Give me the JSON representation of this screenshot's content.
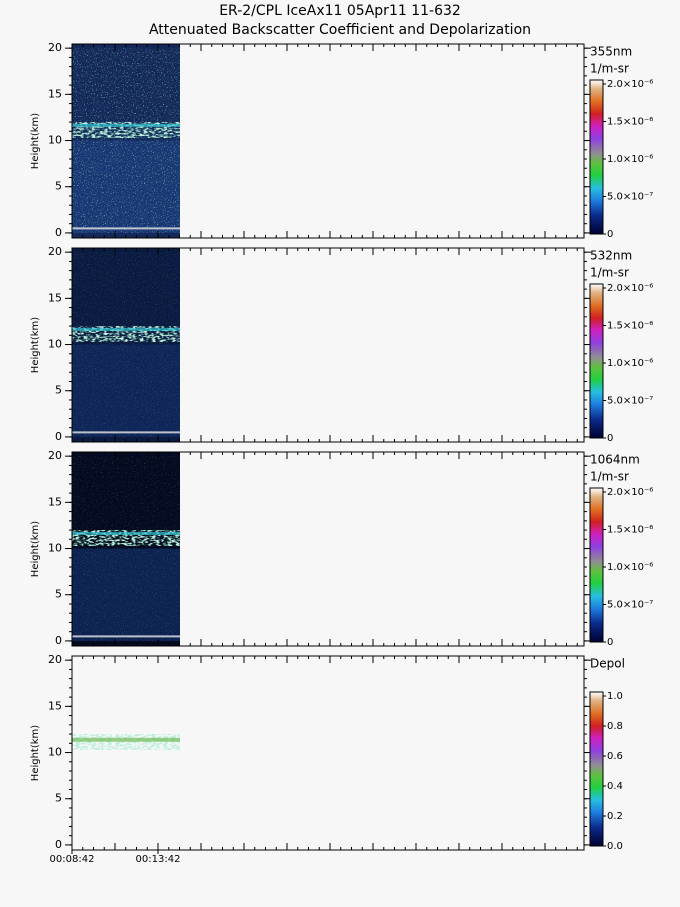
{
  "title": "ER-2/CPL IceAx11 05Apr11 11-632",
  "subtitle": "Attenuated Backscatter Coefficient and Depolarization",
  "chart_data": [
    {
      "type": "curtain",
      "colorbar_title": "355nm",
      "colorbar_unit": "1/m-sr",
      "ylabel": "Height(km)",
      "ylim": [
        -0.55,
        20.45
      ],
      "yticks": [
        0,
        5,
        10,
        15,
        20
      ],
      "clim": [
        0,
        2e-06
      ],
      "cticks": [
        0,
        {
          "value": 5e-07,
          "label": "5.0×10⁻⁷"
        },
        {
          "value": 1e-06,
          "label": "1.0×10⁻⁶"
        },
        {
          "value": 1.5e-06,
          "label": "1.5×10⁻⁶"
        },
        {
          "value": 2e-06,
          "label": "2.0×10⁻⁶"
        }
      ]
    },
    {
      "type": "curtain",
      "colorbar_title": "532nm",
      "colorbar_unit": "1/m-sr",
      "ylabel": "Height(km)",
      "ylim": [
        -0.55,
        20.45
      ],
      "yticks": [
        0,
        5,
        10,
        15,
        20
      ],
      "clim": [
        0,
        2e-06
      ],
      "cticks": [
        0,
        {
          "value": 5e-07,
          "label": "5.0×10⁻⁷"
        },
        {
          "value": 1e-06,
          "label": "1.0×10⁻⁶"
        },
        {
          "value": 1.5e-06,
          "label": "1.5×10⁻⁶"
        },
        {
          "value": 2e-06,
          "label": "2.0×10⁻⁶"
        }
      ]
    },
    {
      "type": "curtain",
      "colorbar_title": "1064nm",
      "colorbar_unit": "1/m-sr",
      "ylabel": "Height(km)",
      "ylim": [
        -0.55,
        20.45
      ],
      "yticks": [
        0,
        5,
        10,
        15,
        20
      ],
      "clim": [
        0,
        2e-06
      ],
      "cticks": [
        0,
        {
          "value": 5e-07,
          "label": "5.0×10⁻⁷"
        },
        {
          "value": 1e-06,
          "label": "1.0×10⁻⁶"
        },
        {
          "value": 1.5e-06,
          "label": "1.5×10⁻⁶"
        },
        {
          "value": 2e-06,
          "label": "2.0×10⁻⁶"
        }
      ]
    },
    {
      "type": "depol",
      "colorbar_title": "Depol",
      "ylabel": "Height(km)",
      "ylim": [
        -0.55,
        20.45
      ],
      "yticks": [
        0,
        5,
        10,
        15,
        20
      ],
      "clim": [
        0,
        1
      ],
      "cticks": [
        {
          "value": 0,
          "label": "0.0"
        },
        0.2,
        0.4,
        0.6,
        0.8,
        {
          "value": 1,
          "label": "1.0"
        }
      ],
      "xlim": [
        522,
        2308
      ],
      "xticks": [
        {
          "value": 522,
          "label": "00:08:42"
        },
        {
          "value": 822,
          "label": "00:13:42"
        }
      ]
    }
  ]
}
